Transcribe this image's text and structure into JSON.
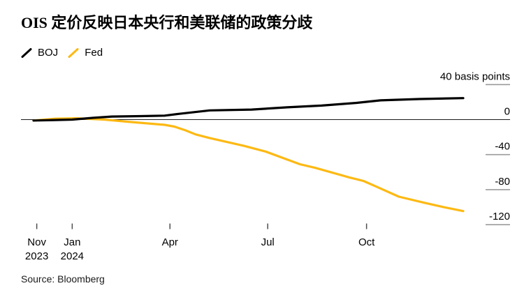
{
  "title": "OIS 定价反映日本央行和美联储的政策分歧",
  "legend": [
    {
      "name": "BOJ",
      "color": "#000000"
    },
    {
      "name": "Fed",
      "color": "#FDB913"
    }
  ],
  "source": "Source: Bloomberg",
  "colors": {
    "boj_line": "#000000",
    "fed_line": "#FDB913",
    "axis_tick": "#9b9b9b",
    "x_tick": "#4d4d4d",
    "zero_line": "#1a1a1a",
    "label_text": "#000000"
  },
  "chart_data": {
    "type": "line",
    "title": "OIS 定价反映日本央行和美联储的政策分歧",
    "ylabel": "basis points",
    "ylim": [
      -130,
      45
    ],
    "grid": false,
    "legend_position": "top-left",
    "x_unit": "days since late Nov 2023",
    "x_range": [
      0,
      400
    ],
    "x_ticks": [
      {
        "t": 3,
        "lines": [
          "Nov",
          "2023"
        ]
      },
      {
        "t": 36,
        "lines": [
          "Jan",
          "2024"
        ]
      },
      {
        "t": 127,
        "lines": [
          "Apr"
        ]
      },
      {
        "t": 218,
        "lines": [
          "Jul"
        ]
      },
      {
        "t": 310,
        "lines": [
          "Oct"
        ]
      }
    ],
    "y_ticks": [
      {
        "v": 40,
        "label": "40 basis points"
      },
      {
        "v": 0,
        "label": "0"
      },
      {
        "v": -40,
        "label": "-40"
      },
      {
        "v": -80,
        "label": "-80"
      },
      {
        "v": -120,
        "label": "-120"
      }
    ],
    "zero_line": true,
    "series": [
      {
        "name": "Fed",
        "color": "#FDB913",
        "points": [
          [
            0,
            -1
          ],
          [
            20,
            1
          ],
          [
            40,
            1.5
          ],
          [
            66,
            0
          ],
          [
            88,
            -2.5
          ],
          [
            122,
            -6
          ],
          [
            131,
            -8
          ],
          [
            141,
            -12
          ],
          [
            151,
            -17
          ],
          [
            164,
            -21
          ],
          [
            196,
            -30
          ],
          [
            216,
            -36.5
          ],
          [
            248,
            -51
          ],
          [
            262,
            -55
          ],
          [
            294,
            -66
          ],
          [
            307,
            -70
          ],
          [
            320,
            -77
          ],
          [
            340,
            -88
          ],
          [
            364,
            -95
          ],
          [
            382,
            -100
          ],
          [
            400,
            -104.5
          ]
        ]
      },
      {
        "name": "BOJ",
        "color": "#000000",
        "points": [
          [
            0,
            -1
          ],
          [
            20,
            -0.5
          ],
          [
            36,
            0
          ],
          [
            55,
            2
          ],
          [
            73,
            3.5
          ],
          [
            100,
            4
          ],
          [
            122,
            4.5
          ],
          [
            135,
            6.5
          ],
          [
            164,
            10.5
          ],
          [
            203,
            11.5
          ],
          [
            236,
            14
          ],
          [
            268,
            16
          ],
          [
            300,
            19
          ],
          [
            323,
            22
          ],
          [
            359,
            23.5
          ],
          [
            400,
            24.5
          ]
        ]
      }
    ]
  }
}
